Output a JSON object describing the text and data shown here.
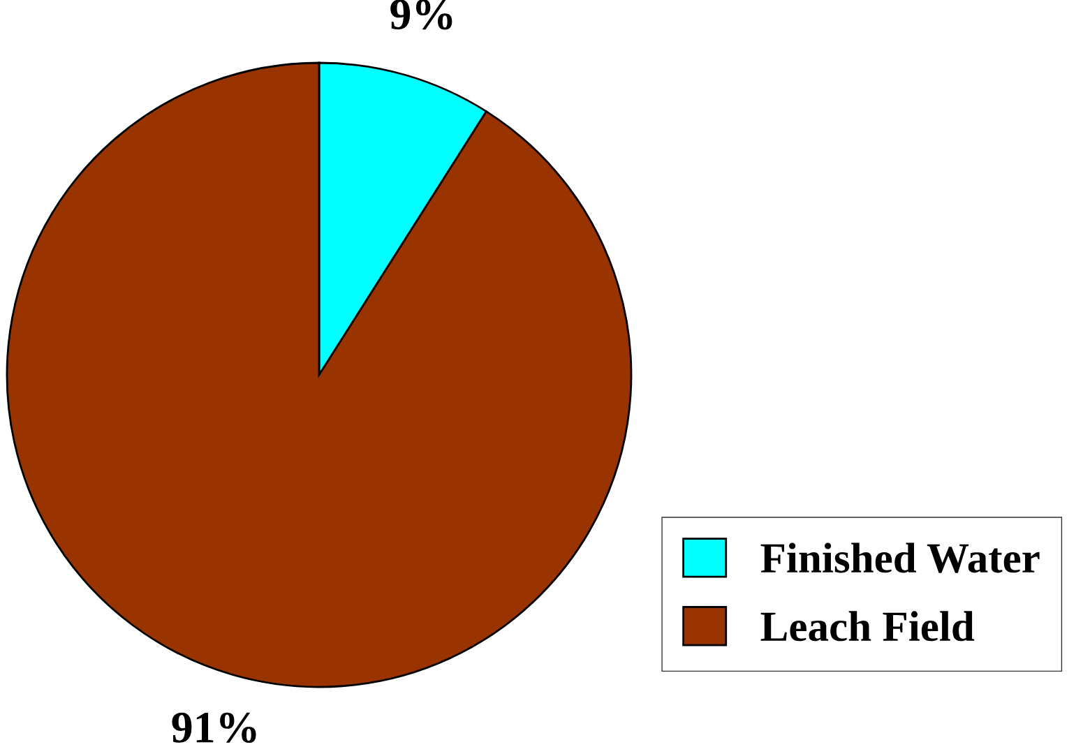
{
  "chart_data": {
    "type": "pie",
    "categories": [
      "Finished Water",
      "Leach Field"
    ],
    "values": [
      9,
      91
    ],
    "colors": [
      "#00ffff",
      "#993300"
    ],
    "value_labels": [
      "9%",
      "91%"
    ],
    "legend": "bottom right"
  }
}
